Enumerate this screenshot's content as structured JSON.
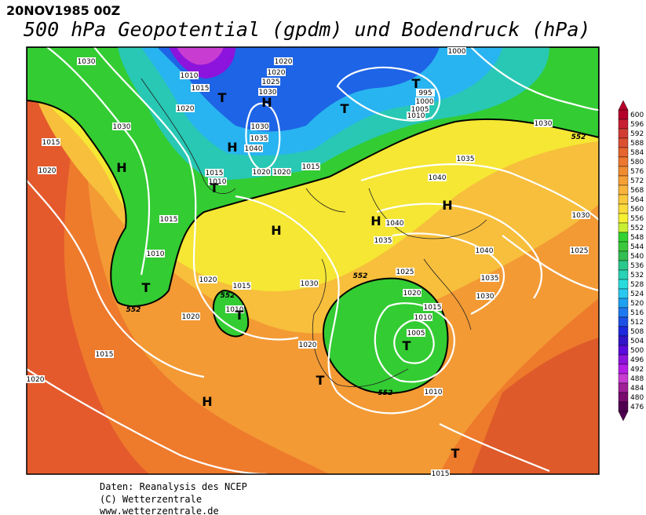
{
  "header": {
    "date": "20NOV1985 00Z",
    "title": "500 hPa Geopotential (gpdm) und Bodendruck (hPa)"
  },
  "legend": {
    "levels": [
      600,
      596,
      592,
      588,
      584,
      580,
      576,
      572,
      568,
      564,
      560,
      556,
      552,
      548,
      544,
      540,
      536,
      532,
      528,
      524,
      520,
      516,
      512,
      508,
      504,
      500,
      496,
      492,
      488,
      484,
      480,
      476
    ],
    "colors": [
      "#b4002a",
      "#c81e32",
      "#d23c32",
      "#dc5032",
      "#e6642d",
      "#ed7830",
      "#f08c30",
      "#f5a035",
      "#f8b43c",
      "#fac83c",
      "#fadc3c",
      "#f5f032",
      "#c8f032",
      "#32d232",
      "#3cc83c",
      "#32be50",
      "#28c88c",
      "#28d2b4",
      "#28dcdc",
      "#28c8f0",
      "#1ea0f0",
      "#1e78f0",
      "#1e50e6",
      "#1e28dc",
      "#3214c8",
      "#5a0adc",
      "#8c14dc",
      "#b41ee6",
      "#c83cd2",
      "#a01e96",
      "#780a6e",
      "#500050"
    ]
  },
  "map": {
    "pressure_labels": [
      1030,
      1010,
      1015,
      1020,
      1030,
      1015,
      1020,
      1015,
      1010,
      1015,
      1010,
      1020,
      1015,
      1010,
      1020,
      1015,
      1020,
      1020,
      1020,
      1025,
      1030,
      1030,
      1035,
      1040,
      1020,
      1020,
      1015,
      1000,
      995,
      1000,
      1005,
      1010,
      1030,
      1035,
      1040,
      1040,
      1035,
      1030,
      1025,
      1020,
      1015,
      1010,
      1005,
      1020,
      1010,
      1015,
      1040,
      1035,
      1030,
      1030,
      1025
    ],
    "centers": [
      "T",
      "H",
      "T",
      "T",
      "H",
      "T",
      "H",
      "H",
      "H",
      "H",
      "T",
      "T",
      "T",
      "T",
      "H",
      "T"
    ],
    "contour_labels": [
      552,
      552,
      552,
      552,
      552
    ]
  },
  "footer": {
    "lines": [
      "Daten: Reanalysis des NCEP",
      "(C) Wetterzentrale",
      "www.wetterzentrale.de"
    ]
  }
}
